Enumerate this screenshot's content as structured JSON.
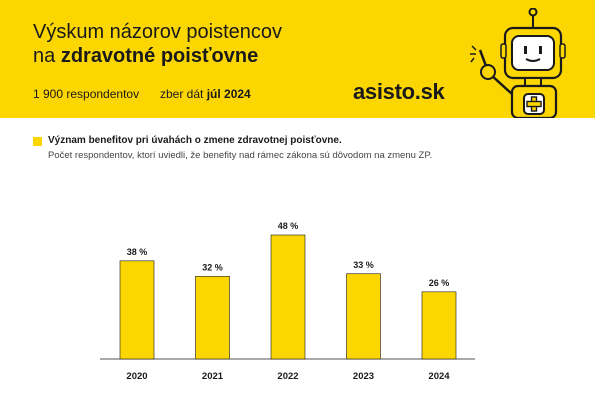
{
  "header": {
    "title_line1": "Výskum názorov poistencov",
    "title_line2_prefix": "na ",
    "title_line2_bold": "zdravotné poisťovne",
    "respondents": "1 900 respondentov",
    "collection_prefix": "zber dát ",
    "collection_date": "júl 2024",
    "brand": "asisto.sk",
    "mascot_icon": "robot-mascot-icon",
    "accent_color": "#fcd600"
  },
  "chart_data": {
    "type": "bar",
    "title": "Význam benefitov pri úvahách o zmene zdravotnej poisťovne.",
    "subtitle": "Počet respondentov, ktorí uviedli, že benefity nad rámec zákona sú dôvodom na zmenu ZP.",
    "categories": [
      "2020",
      "2021",
      "2022",
      "2023",
      "2024"
    ],
    "values": [
      38,
      32,
      48,
      33,
      26
    ],
    "value_labels": [
      "38 %",
      "32 %",
      "48 %",
      "33 %",
      "26 %"
    ],
    "ylim": [
      0,
      60
    ],
    "grid": false,
    "bar_color": "#fcd600"
  }
}
